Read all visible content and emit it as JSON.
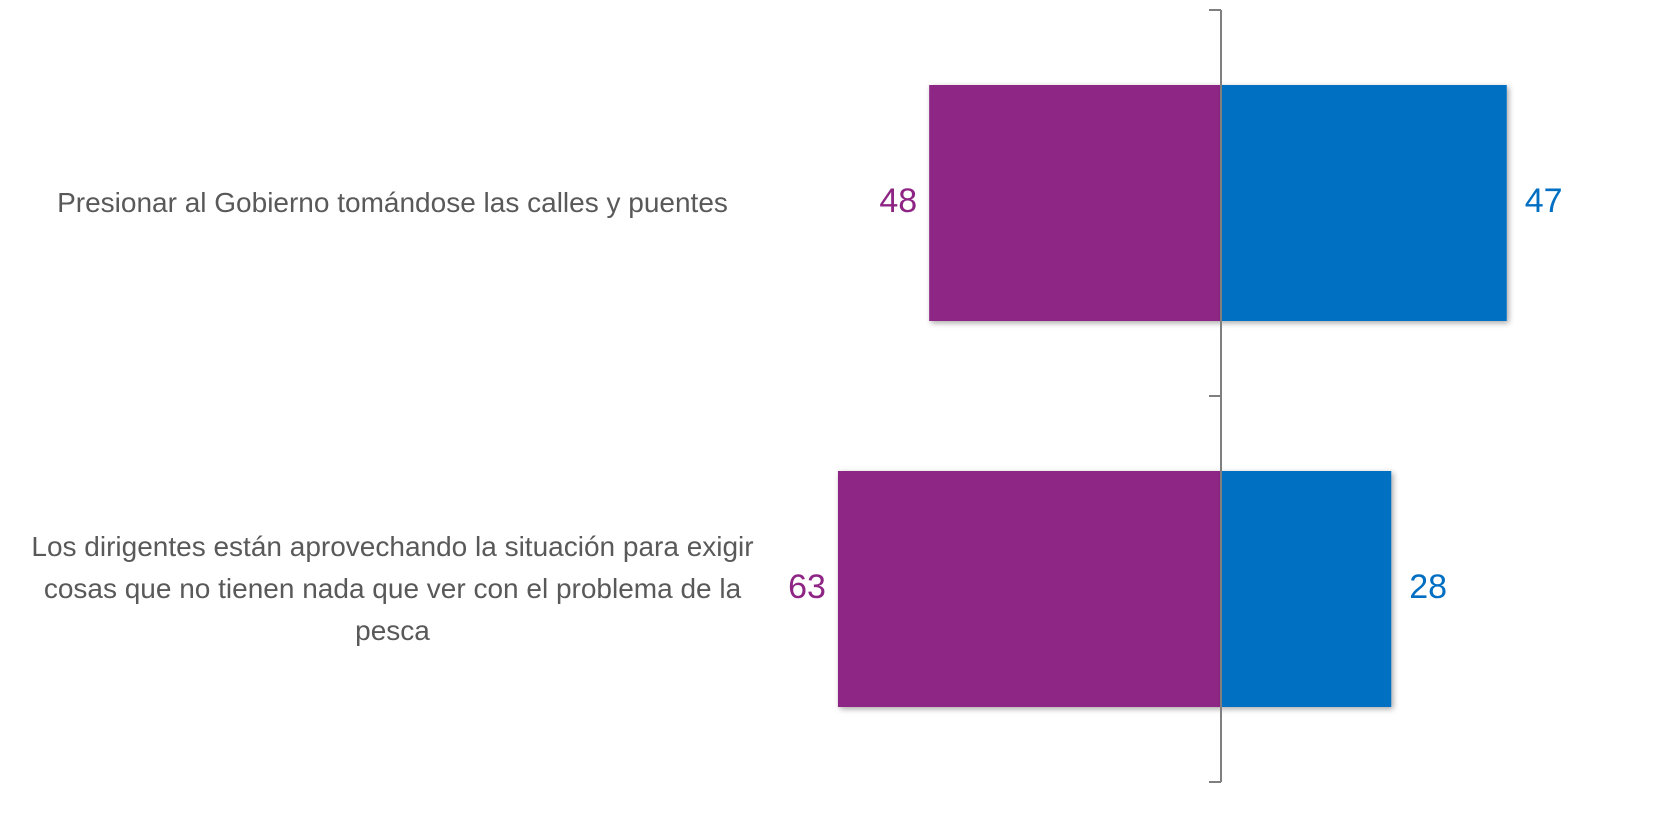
{
  "chart_data": {
    "type": "diverging-bar",
    "categories": [
      "Presionar al Gobierno tomándose las calles y puentes",
      "Los dirigentes están aprovechando la situación para exigir cosas que no tienen nada que ver con el problema de la pesca"
    ],
    "series": [
      {
        "color": "#8e2585",
        "values": [
          48,
          63
        ]
      },
      {
        "color": "#006fc3",
        "values": [
          47,
          28
        ]
      }
    ]
  }
}
